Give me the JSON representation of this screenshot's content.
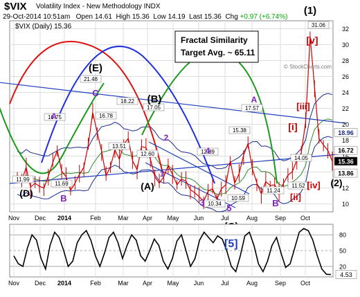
{
  "header": {
    "symbol": "$VIX",
    "name": "Volatility Index - New Methodology INDX",
    "timestamp": "29-Oct-2014 10:51am",
    "open_label": "Open",
    "open": "14.61",
    "high_label": "High",
    "high": "15.36",
    "low_label": "Low",
    "low": "14.19",
    "last_label": "Last",
    "last": "15.36",
    "chg_label": "Chg",
    "chg": "+0.97 (+6.74%)",
    "legend_text": "$VIX (Daily) 15.36",
    "watermark": "© StockCharts.com"
  },
  "callout": {
    "line1": "Fractal Similarity",
    "line2": "Target Avg. ~ 65.11"
  },
  "colors": {
    "price": "#cc0000",
    "blue_line": "#1f3fbf",
    "green_arc": "#1a9a1a",
    "red_arc": "#e01010",
    "blue_arc": "#2030e0",
    "purple": "#8020c0",
    "red_label": "#cc0000",
    "oscillator": "#000000"
  },
  "chart_data": [
    {
      "type": "line",
      "title": "$VIX (Daily) 15.36",
      "x_ticks": [
        "Nov",
        "Dec",
        "2014",
        "Feb",
        "Mar",
        "Apr",
        "May",
        "Jun",
        "Jul",
        "Aug",
        "Sep",
        "Oct"
      ],
      "y_ticks": [
        10,
        12,
        14,
        16,
        18,
        20,
        22,
        24,
        26,
        28,
        30,
        32
      ],
      "ylim": [
        9,
        33
      ],
      "grid": true,
      "series": [
        {
          "values": [
            13.4,
            12.9,
            14.6,
            12.1,
            12.6,
            12.2,
            11.99,
            13.5,
            15.2,
            16.75,
            14.1,
            13.4,
            11.69,
            12.6,
            13.7,
            14.6,
            17.4,
            21.48,
            19.0,
            16.6,
            13.51,
            14.7,
            16.78,
            15.6,
            17.5,
            18.22,
            15.4,
            14.3,
            17.2,
            17.05,
            15.6,
            13.4,
            12.6,
            13.4,
            14.8,
            13.7,
            12.4,
            13.1,
            12.89,
            11.8,
            11.4,
            10.9,
            10.34,
            11.6,
            11.9,
            10.59,
            11.9,
            12.4,
            15.38,
            12.6,
            13.8,
            16.1,
            17.57,
            14.4,
            12.6,
            11.24,
            12.8,
            12.3,
            12.4,
            11.52,
            12.6,
            13.6,
            14.05,
            15.5,
            16.4,
            20.3,
            31.06,
            24.6,
            18.2,
            17.4,
            16.72,
            15.36
          ]
        }
      ],
      "reference_levels": [
        18.96,
        16.72,
        15.36,
        13.86
      ],
      "price_labels": [
        "16.75",
        "21.48",
        "18.22",
        "16.78",
        "17.05",
        "13.51",
        "12.60",
        "11.99",
        "11.69",
        "15.38",
        "17.57",
        "12.89",
        "10.34",
        "10.59",
        "11.24",
        "11.52",
        "14.05",
        "31.06"
      ],
      "wave_labels": [
        {
          "text": "(E)",
          "color": "black"
        },
        {
          "text": "(B)",
          "color": "black"
        },
        {
          "text": "(A)",
          "color": "black"
        },
        {
          "text": "(C)",
          "color": "black"
        },
        {
          "text": "(D)",
          "color": "black"
        },
        {
          "text": "(1)",
          "color": "black"
        },
        {
          "text": "(2)",
          "color": "black"
        },
        {
          "text": "A",
          "color": "purple"
        },
        {
          "text": "B",
          "color": "purple"
        },
        {
          "text": "C",
          "color": "purple"
        },
        {
          "text": "A",
          "color": "purple"
        },
        {
          "text": "B",
          "color": "purple"
        },
        {
          "text": "1",
          "color": "purple"
        },
        {
          "text": "2",
          "color": "purple"
        },
        {
          "text": "3",
          "color": "purple"
        },
        {
          "text": "4",
          "color": "purple"
        },
        {
          "text": "5",
          "color": "purple"
        },
        {
          "text": "[i]",
          "color": "red"
        },
        {
          "text": "[ii]",
          "color": "red"
        },
        {
          "text": "[iii]",
          "color": "red"
        },
        {
          "text": "[iv]",
          "color": "red"
        },
        {
          "text": "[v]",
          "color": "red"
        }
      ]
    },
    {
      "type": "line",
      "x_ticks": [
        "Nov",
        "Dec",
        "2014",
        "Feb",
        "Mar",
        "Apr",
        "May",
        "Jun",
        "Jul",
        "Aug",
        "Sep",
        "Oct"
      ],
      "y_ticks": [
        20,
        50,
        80
      ],
      "ylim": [
        0,
        100
      ],
      "last_value": "4.53",
      "annotation": "[5]",
      "series": [
        {
          "values": [
            40,
            25,
            20,
            55,
            80,
            70,
            35,
            15,
            60,
            85,
            75,
            50,
            20,
            30,
            65,
            80,
            88,
            70,
            40,
            20,
            45,
            75,
            85,
            65,
            35,
            60,
            80,
            70,
            40,
            30,
            50,
            72,
            60,
            30,
            15,
            35,
            68,
            80,
            50,
            20,
            35,
            70,
            85,
            75,
            65,
            78,
            72,
            50,
            20,
            10,
            40,
            78,
            85,
            60,
            25,
            10,
            30,
            60,
            75,
            45,
            18,
            25,
            55,
            85,
            92,
            88,
            70,
            40,
            15,
            5,
            4.53
          ]
        }
      ]
    }
  ]
}
